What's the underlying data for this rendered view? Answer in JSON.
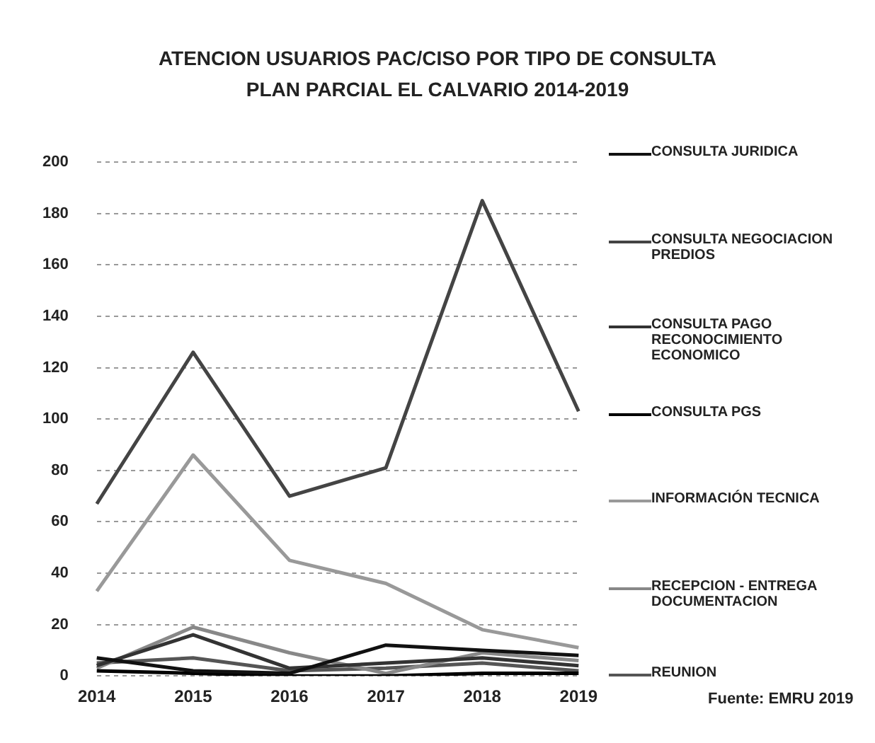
{
  "chart_data": {
    "type": "line",
    "title": "ATENCION USUARIOS PAC/CISO POR TIPO DE CONSULTA\nPLAN PARCIAL EL CALVARIO 2014-2019",
    "categories": [
      "2014",
      "2015",
      "2016",
      "2017",
      "2018",
      "2019"
    ],
    "series": [
      {
        "name": "CONSULTA JURIDICA",
        "color": "#111111",
        "values": [
          7,
          2,
          1,
          12,
          10,
          8
        ]
      },
      {
        "name": "CONSULTA NEGOCIACION PREDIOS",
        "color": "#444444",
        "values": [
          67,
          126,
          70,
          81,
          185,
          103
        ]
      },
      {
        "name": "CONSULTA PAGO RECONOCIMIENTO ECONOMICO",
        "color": "#333333",
        "values": [
          4,
          16,
          3,
          5,
          7,
          4
        ]
      },
      {
        "name": "CONSULTA PGS",
        "color": "#000000",
        "values": [
          2,
          1,
          0,
          0,
          1,
          1
        ]
      },
      {
        "name": "INFORMACIÓN TECNICA",
        "color": "#999999",
        "values": [
          33,
          86,
          45,
          36,
          18,
          11
        ]
      },
      {
        "name": "RECEPCION - ENTREGA DOCUMENTACION",
        "color": "#888888",
        "values": [
          3,
          19,
          9,
          1,
          9,
          6
        ]
      },
      {
        "name": "REUNION",
        "color": "#555555",
        "values": [
          5,
          7,
          2,
          3,
          5,
          2
        ]
      }
    ],
    "ylim": [
      0,
      200
    ],
    "yticks": [
      0,
      20,
      40,
      60,
      80,
      100,
      120,
      140,
      160,
      180,
      200
    ],
    "grid": "y",
    "legend": "right",
    "marker": "none",
    "line_style": "solid",
    "annotations": [
      "Fuente: EMRU 2019"
    ]
  }
}
